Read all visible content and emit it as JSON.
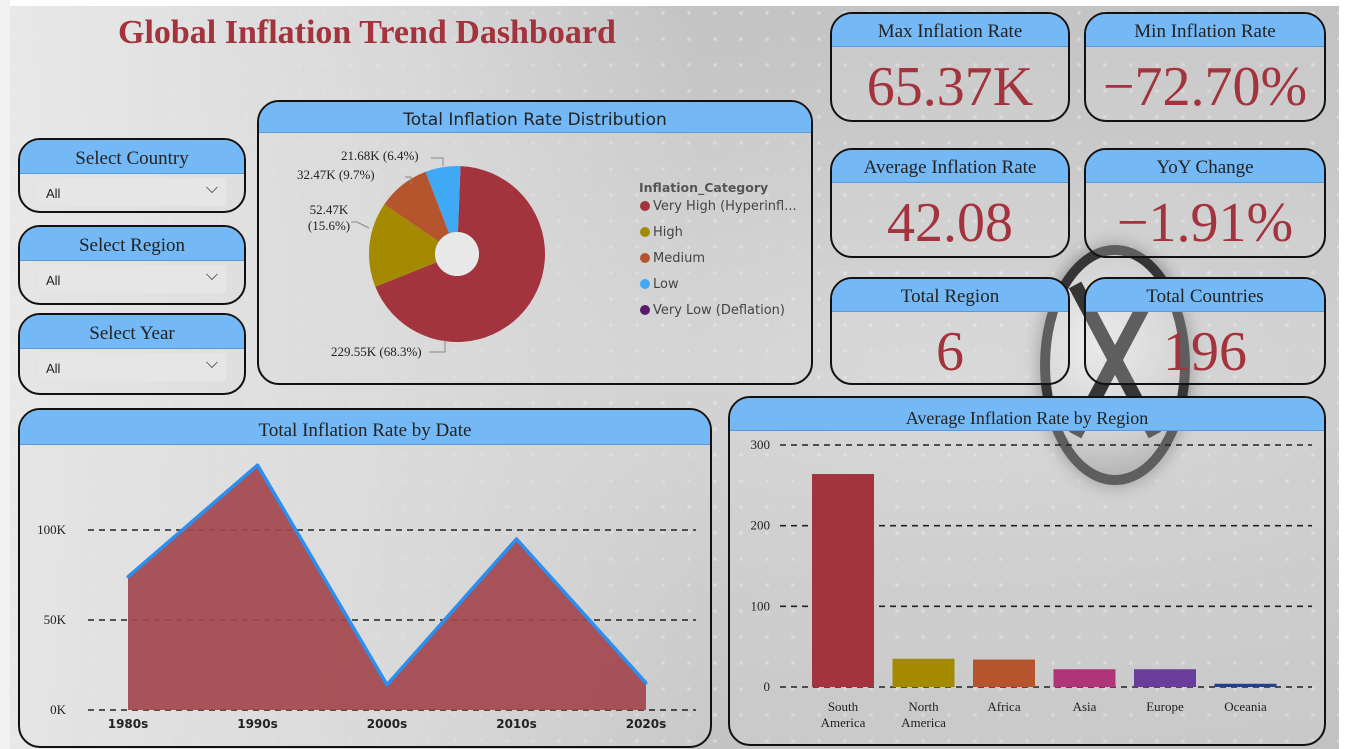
{
  "title": "Global Inflation Trend Dashboard",
  "kpis": {
    "max": {
      "label": "Max Inflation Rate",
      "value": "65.37K"
    },
    "min": {
      "label": "Min Inflation Rate",
      "value": "−72.70%"
    },
    "avg": {
      "label": "Average Inflation Rate",
      "value": "42.08"
    },
    "yoy": {
      "label": "YoY Change",
      "value": "−1.91%"
    },
    "regions": {
      "label": "Total Region",
      "value": "6"
    },
    "countries": {
      "label": "Total Countries",
      "value": "196"
    }
  },
  "slicers": {
    "country": {
      "label": "Select Country",
      "value": "All"
    },
    "region": {
      "label": "Select Region",
      "value": "All"
    },
    "year": {
      "label": "Select Year",
      "value": "All"
    }
  },
  "colors": {
    "accent": "#a3333d",
    "header": "#74b8f5"
  },
  "chart_data": [
    {
      "type": "pie",
      "title": "Total Inflation Rate Distribution",
      "legend_title": "Inflation_Category",
      "legend_position": "right",
      "slices": [
        {
          "name": "Very High (Hyperinfl...",
          "value": 229550,
          "label": "229.55K (68.3%)",
          "color": "#a3333d"
        },
        {
          "name": "High",
          "value": 52470,
          "label_line1": "52.47K",
          "label_line2": "(15.6%)",
          "color": "#a38a00"
        },
        {
          "name": "Medium",
          "value": 32470,
          "label": "32.47K (9.7%)",
          "color": "#b5552e"
        },
        {
          "name": "Low",
          "value": 21680,
          "label": "21.68K (6.4%)",
          "color": "#3fa9f5"
        },
        {
          "name": "Very Low (Deflation)",
          "value": 0,
          "color": "#5a1a6b"
        }
      ]
    },
    {
      "type": "area",
      "title": "Total Inflation Rate by Date",
      "categories": [
        "1980s",
        "1990s",
        "2000s",
        "2010s",
        "2020s"
      ],
      "values": [
        74000,
        136000,
        14000,
        95000,
        15000
      ],
      "y_ticks": [
        {
          "value": 0,
          "label": "0K"
        },
        {
          "value": 50000,
          "label": "50K"
        },
        {
          "value": 100000,
          "label": "100K"
        }
      ],
      "ylim": [
        0,
        150000
      ],
      "grid": true,
      "fill_color": "#a3454d",
      "line_color": "#2b8ff0"
    },
    {
      "type": "bar",
      "title": "Average Inflation Rate by Region",
      "categories": [
        [
          "South",
          "America"
        ],
        [
          "North",
          "America"
        ],
        [
          "Africa"
        ],
        [
          "Asia"
        ],
        [
          "Europe"
        ],
        [
          "Oceania"
        ]
      ],
      "values": [
        264,
        35,
        34,
        22,
        22,
        4
      ],
      "colors": [
        "#a3333d",
        "#a38a00",
        "#b5552e",
        "#b0347a",
        "#6a3d9a",
        "#1f3f8f"
      ],
      "y_ticks": [
        {
          "value": 0,
          "label": "0"
        },
        {
          "value": 100,
          "label": "100"
        },
        {
          "value": 200,
          "label": "200"
        },
        {
          "value": 300,
          "label": "300"
        }
      ],
      "ylim": [
        0,
        300
      ],
      "grid": true
    }
  ]
}
